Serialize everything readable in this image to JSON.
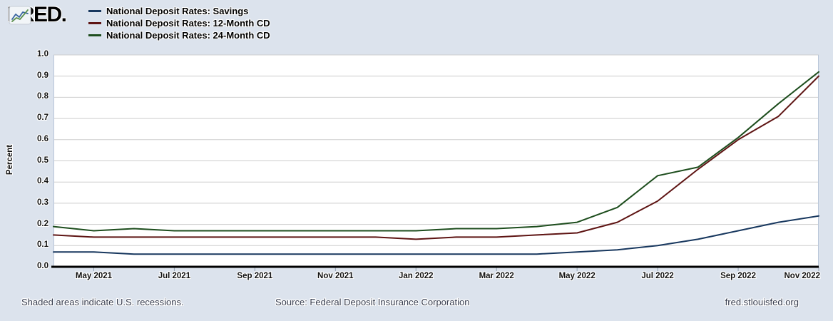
{
  "logo": {
    "text": "FRED.",
    "icon": "fred-sparkline-icon"
  },
  "legend": {
    "items": [
      {
        "label": "National Deposit Rates: Savings",
        "color": "#17375e"
      },
      {
        "label": "National Deposit Rates: 12-Month CD",
        "color": "#5e1413"
      },
      {
        "label": "National Deposit Rates: 24-Month CD",
        "color": "#1d4d1d"
      }
    ]
  },
  "footer": {
    "recession_note": "Shaded areas indicate U.S. recessions.",
    "source": "Source: Federal Deposit Insurance Corporation",
    "site_link": "fred.stlouisfed.org"
  },
  "colors": {
    "page_background": "#dce3ed",
    "plot_background": "#ffffff",
    "gridline": "#cdcdcd",
    "plot_border": "#b9c6d9",
    "axis_line": "#000000",
    "tick_mark": "#93a1b4"
  },
  "chart_data": {
    "type": "line",
    "title": "",
    "ylabel": "Percent",
    "xlabel": "",
    "ylim": [
      0.0,
      1.0
    ],
    "grid": true,
    "legend_position": "top-left",
    "y_ticks": [
      "0.0",
      "0.1",
      "0.2",
      "0.3",
      "0.4",
      "0.5",
      "0.6",
      "0.7",
      "0.8",
      "0.9",
      "1.0"
    ],
    "x": [
      "Apr 2021",
      "May 2021",
      "Jun 2021",
      "Jul 2021",
      "Aug 2021",
      "Sep 2021",
      "Oct 2021",
      "Nov 2021",
      "Dec 2021",
      "Jan 2022",
      "Feb 2022",
      "Mar 2022",
      "Apr 2022",
      "May 2022",
      "Jun 2022",
      "Jul 2022",
      "Aug 2022",
      "Sep 2022",
      "Oct 2022",
      "Nov 2022"
    ],
    "x_tick_positions": [
      1,
      3,
      5,
      7,
      9,
      11,
      13,
      15,
      17,
      19
    ],
    "x_tick_labels": [
      "May 2021",
      "Jul 2021",
      "Sep 2021",
      "Nov 2021",
      "Jan 2022",
      "Mar 2022",
      "May 2022",
      "Jul 2022",
      "Sep 2022",
      "Nov 2022"
    ],
    "series": [
      {
        "name": "National Deposit Rates: Savings",
        "color": "#17375e",
        "values": [
          0.07,
          0.07,
          0.06,
          0.06,
          0.06,
          0.06,
          0.06,
          0.06,
          0.06,
          0.06,
          0.06,
          0.06,
          0.06,
          0.07,
          0.08,
          0.1,
          0.13,
          0.17,
          0.21,
          0.24
        ]
      },
      {
        "name": "National Deposit Rates: 12-Month CD",
        "color": "#5e1413",
        "values": [
          0.15,
          0.14,
          0.14,
          0.14,
          0.14,
          0.14,
          0.14,
          0.14,
          0.14,
          0.13,
          0.14,
          0.14,
          0.15,
          0.16,
          0.21,
          0.31,
          0.46,
          0.6,
          0.71,
          0.9
        ]
      },
      {
        "name": "National Deposit Rates: 24-Month CD",
        "color": "#1d4d1d",
        "values": [
          0.19,
          0.17,
          0.18,
          0.17,
          0.17,
          0.17,
          0.17,
          0.17,
          0.17,
          0.17,
          0.18,
          0.18,
          0.19,
          0.21,
          0.28,
          0.43,
          0.47,
          0.61,
          0.77,
          0.92
        ]
      }
    ]
  }
}
